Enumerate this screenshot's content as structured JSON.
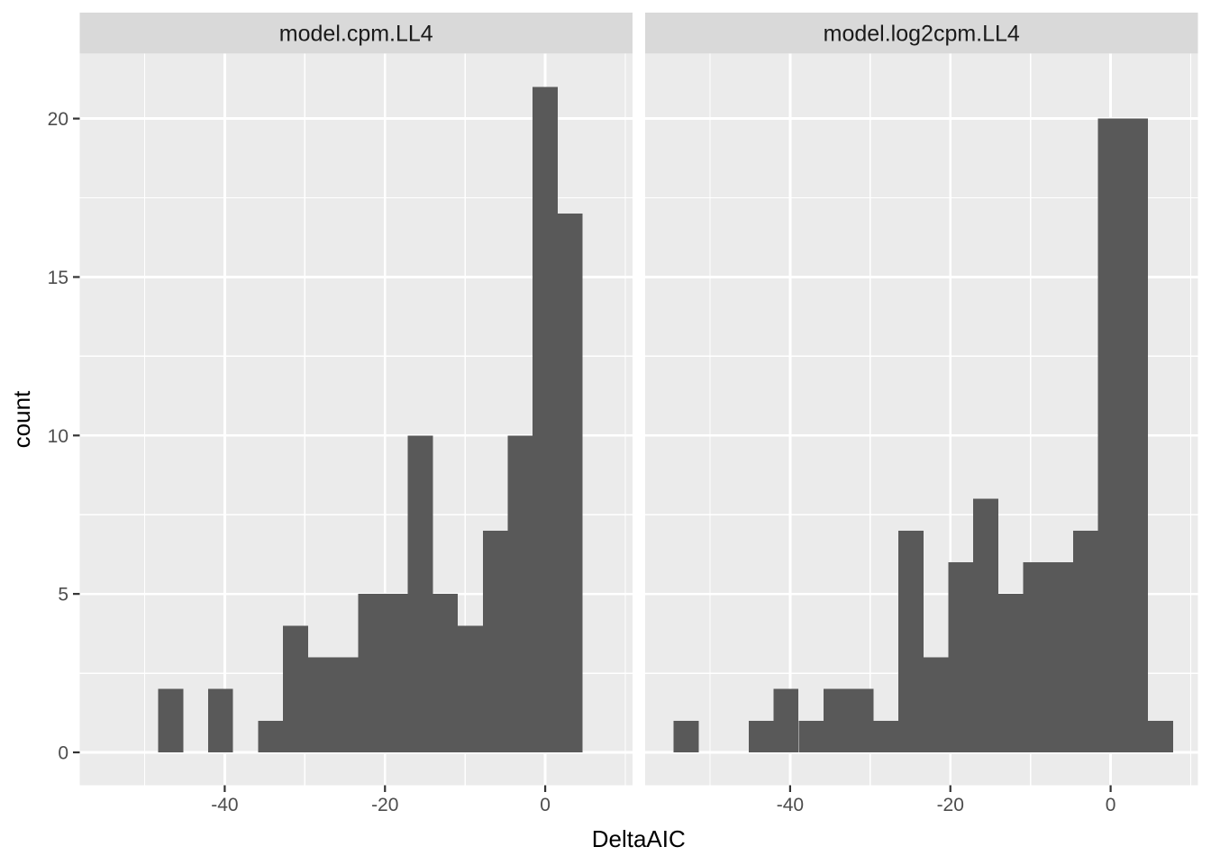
{
  "chart_data": {
    "type": "histogram",
    "title": "",
    "xlabel": "DeltaAIC",
    "ylabel": "count",
    "x_ticks": [
      -40,
      -20,
      0
    ],
    "y_ticks": [
      0,
      5,
      10,
      15,
      20
    ],
    "x_minor_gridlines": [
      -50,
      -30,
      -10,
      10
    ],
    "y_minor_gridlines": [
      2.5,
      7.5,
      12.5,
      17.5
    ],
    "xlim": [
      -58.1,
      10.9
    ],
    "ylim": [
      -1.05,
      22.05
    ],
    "binwidth": 3.116,
    "grid": "on",
    "legend_position": "none",
    "facets": [
      {
        "label": "model.cpm.LL4",
        "total_count": 99,
        "bins": [
          {
            "center": -46.74,
            "count": 2
          },
          {
            "center": -40.51,
            "count": 2
          },
          {
            "center": -34.28,
            "count": 1
          },
          {
            "center": -31.16,
            "count": 4
          },
          {
            "center": -28.04,
            "count": 3
          },
          {
            "center": -24.93,
            "count": 3
          },
          {
            "center": -21.81,
            "count": 5
          },
          {
            "center": -18.7,
            "count": 5
          },
          {
            "center": -15.58,
            "count": 10
          },
          {
            "center": -12.46,
            "count": 5
          },
          {
            "center": -9.35,
            "count": 4
          },
          {
            "center": -6.23,
            "count": 7
          },
          {
            "center": -3.12,
            "count": 10
          },
          {
            "center": 0,
            "count": 21
          },
          {
            "center": 3.12,
            "count": 17
          }
        ]
      },
      {
        "label": "model.log2cpm.LL4",
        "total_count": 99,
        "bins": [
          {
            "center": -52.97,
            "count": 1
          },
          {
            "center": -43.62,
            "count": 1
          },
          {
            "center": -40.51,
            "count": 2
          },
          {
            "center": -37.39,
            "count": 1
          },
          {
            "center": -34.28,
            "count": 2
          },
          {
            "center": -31.16,
            "count": 2
          },
          {
            "center": -28.04,
            "count": 1
          },
          {
            "center": -24.93,
            "count": 7
          },
          {
            "center": -21.81,
            "count": 3
          },
          {
            "center": -18.7,
            "count": 6
          },
          {
            "center": -15.58,
            "count": 8
          },
          {
            "center": -12.46,
            "count": 5
          },
          {
            "center": -9.35,
            "count": 6
          },
          {
            "center": -6.23,
            "count": 6
          },
          {
            "center": -3.12,
            "count": 7
          },
          {
            "center": 0,
            "count": 20
          },
          {
            "center": 3.12,
            "count": 20
          },
          {
            "center": 6.23,
            "count": 1
          }
        ]
      }
    ],
    "colors": {
      "background": "#FFFFFF",
      "panel_bg": "#EBEBEB",
      "strip_bg": "#D9D9D9",
      "strip_text": "#1A1A1A",
      "grid": "#FFFFFF",
      "bar_fill": "#595959",
      "axis_text": "#4D4D4D",
      "tick_mark": "#333333",
      "title_text": "#000000"
    }
  }
}
